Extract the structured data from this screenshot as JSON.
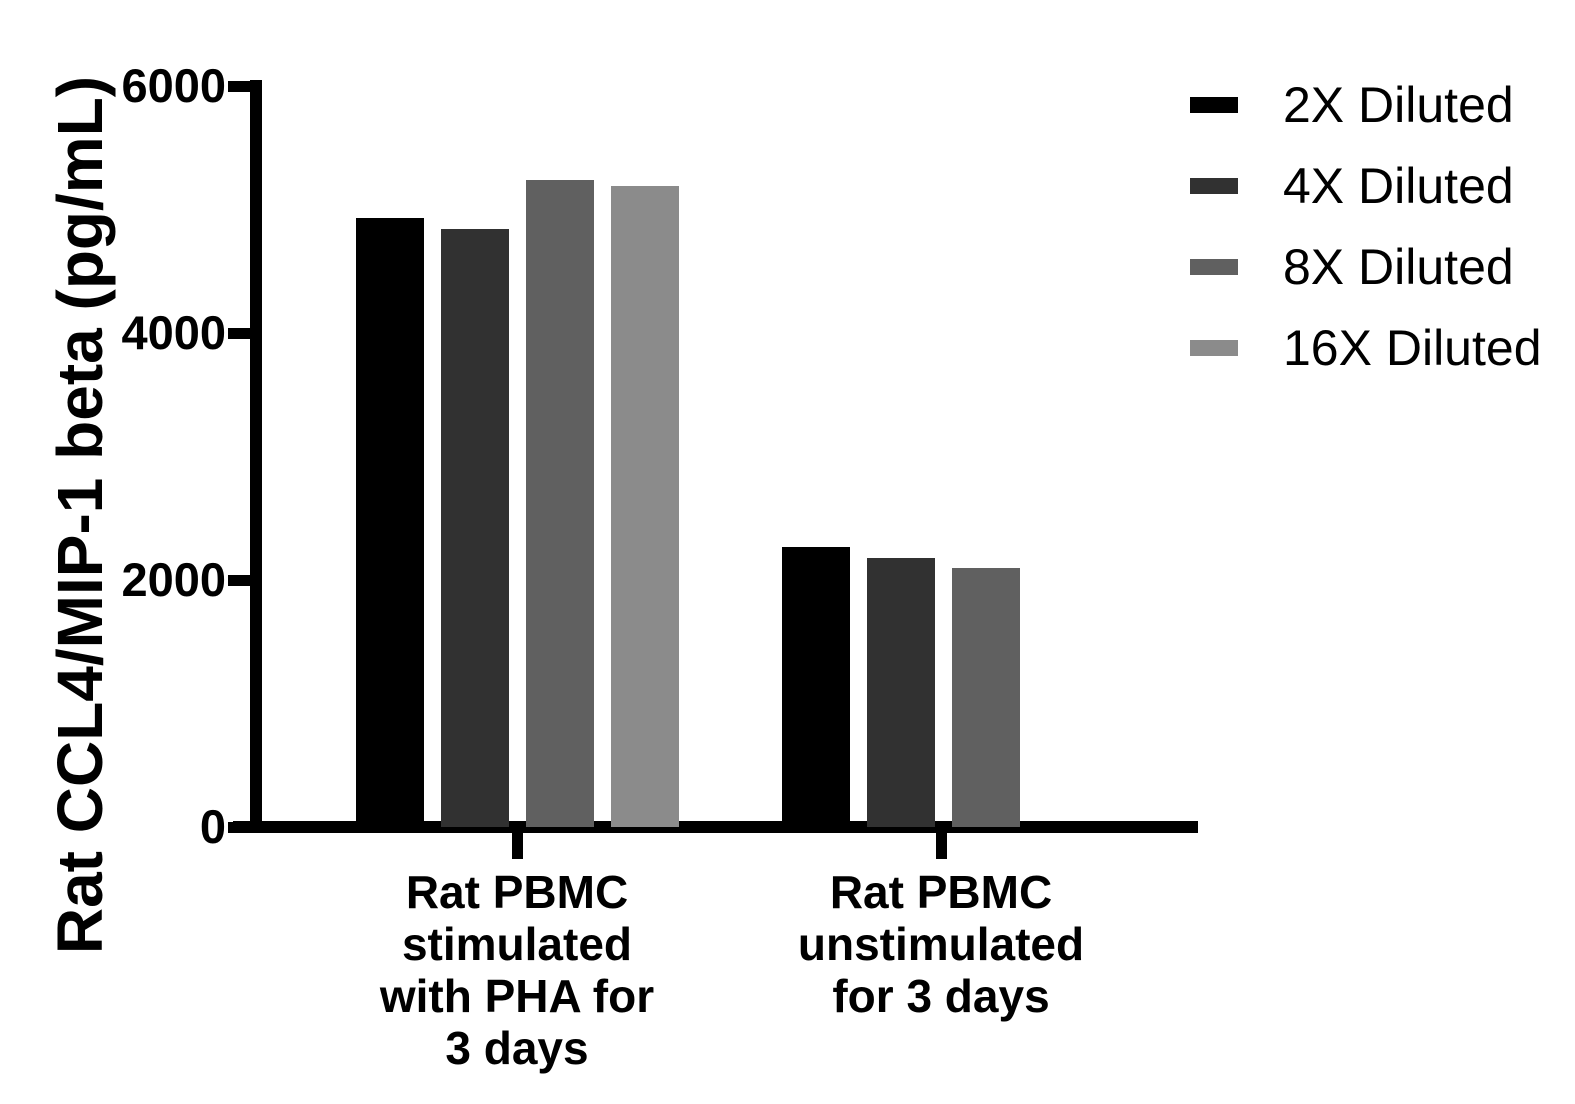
{
  "chart_data": {
    "type": "bar",
    "title": "",
    "ylabel": "Rat CCL4/MIP-1 beta (pg/mL)",
    "xlabel": "",
    "ylim": [
      0,
      6000
    ],
    "yticks": [
      0,
      2000,
      4000,
      6000
    ],
    "ytick_labels": [
      "0",
      "2000",
      "4000",
      "6000"
    ],
    "grid": false,
    "legend_position": "top-right",
    "axis_color": "#000000",
    "categories": [
      {
        "lines": [
          "Rat PBMC",
          "stimulated",
          "with PHA for",
          "3 days"
        ]
      },
      {
        "lines": [
          "Rat PBMC",
          "unstimulated",
          "for 3 days"
        ]
      }
    ],
    "series": [
      {
        "name": "2X Diluted",
        "color": "#000000",
        "values": [
          4930,
          2270
        ]
      },
      {
        "name": "4X Diluted",
        "color": "#313131",
        "values": [
          4840,
          2180
        ]
      },
      {
        "name": "8X Diluted",
        "color": "#606060",
        "values": [
          5240,
          2095
        ]
      },
      {
        "name": "16X Diluted",
        "color": "#8b8b8b",
        "values": [
          5190,
          null
        ]
      }
    ]
  }
}
